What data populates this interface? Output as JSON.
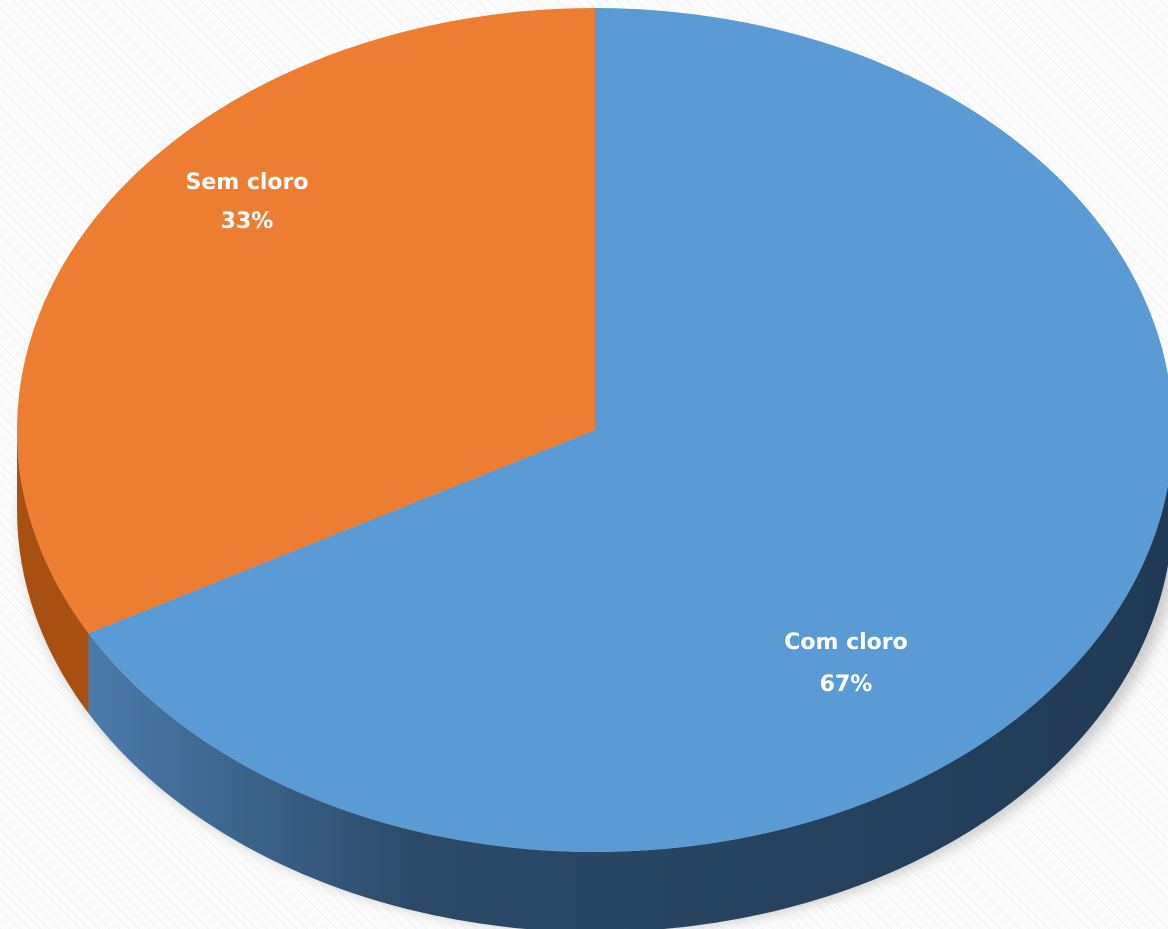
{
  "chart_data": {
    "type": "pie",
    "title": "",
    "slices": [
      {
        "label": "Com cloro",
        "percent_text": "67%",
        "value": 67,
        "color": "#5b9bd5",
        "side_color": "#2e4d6d"
      },
      {
        "label": "Sem cloro",
        "percent_text": "33%",
        "value": 33,
        "color": "#ed7d31",
        "side_color": "#a84f12"
      }
    ],
    "three_d": true,
    "legend": "none"
  }
}
